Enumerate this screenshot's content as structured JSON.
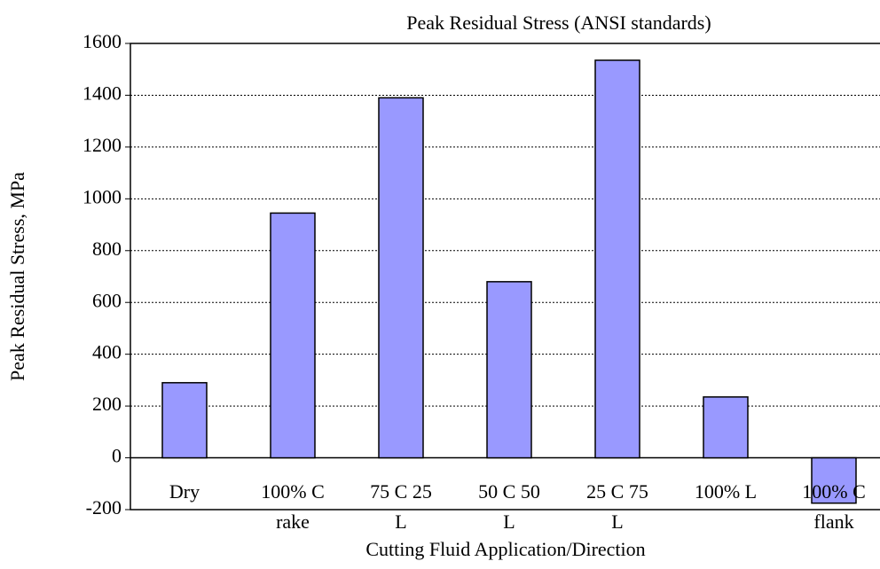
{
  "chart_data": {
    "type": "bar",
    "title": "Peak Residual Stress (ANSI standards)",
    "x_label": "Cutting Fluid Application/Direction",
    "y_label": "Peak Residual Stress, MPa",
    "categories": [
      [
        "Dry"
      ],
      [
        "100% C",
        "rake"
      ],
      [
        "75 C 25",
        "L"
      ],
      [
        "50 C 50",
        "L"
      ],
      [
        "25 C 75",
        "L"
      ],
      [
        "100% L"
      ],
      [
        "100% C",
        "flank"
      ]
    ],
    "values": [
      290,
      945,
      1390,
      680,
      1535,
      235,
      -175
    ],
    "color": "#9999ff",
    "ylim": [
      -200,
      1600
    ],
    "yticks": [
      -200,
      0,
      200,
      400,
      600,
      800,
      1000,
      1200,
      1400,
      1600
    ],
    "grid": true
  }
}
